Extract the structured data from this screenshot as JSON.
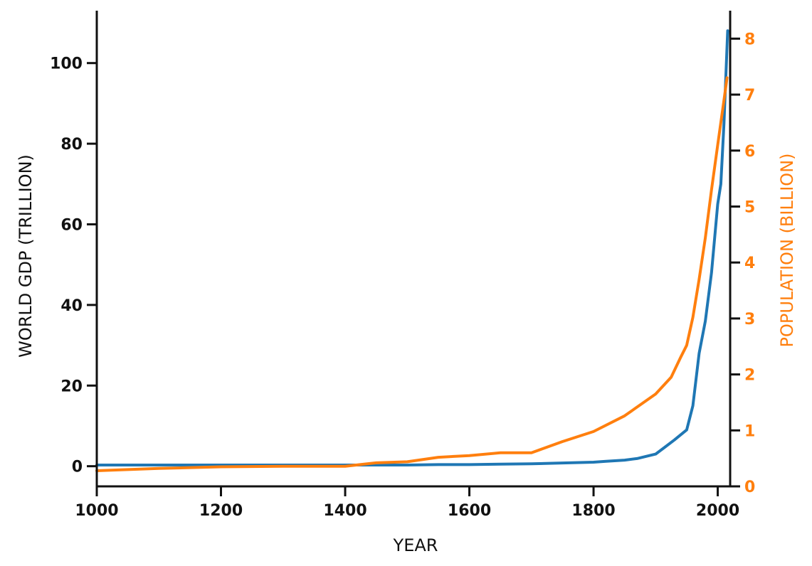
{
  "chart_data": {
    "type": "line",
    "xlabel": "YEAR",
    "xlim": [
      1000,
      2020
    ],
    "xticks": [
      1000,
      1200,
      1400,
      1600,
      1800,
      2000
    ],
    "grid": false,
    "left_axis": {
      "label": "WORLD GDP (TRILLION)",
      "ylim": [
        -5,
        113
      ],
      "ticks": [
        0,
        20,
        40,
        60,
        80,
        100
      ],
      "color": "#111111"
    },
    "right_axis": {
      "label": "POPULATION (BILLION)",
      "ylim": [
        0,
        8.5
      ],
      "ticks": [
        0,
        1,
        2,
        3,
        4,
        5,
        6,
        7,
        8
      ],
      "color": "#ff7f0e"
    },
    "series": [
      {
        "axis": "left",
        "color": "#1f77b4",
        "points": [
          [
            1000,
            0.3
          ],
          [
            1100,
            0.3
          ],
          [
            1200,
            0.3
          ],
          [
            1300,
            0.3
          ],
          [
            1400,
            0.3
          ],
          [
            1500,
            0.3
          ],
          [
            1550,
            0.4
          ],
          [
            1600,
            0.4
          ],
          [
            1650,
            0.5
          ],
          [
            1700,
            0.6
          ],
          [
            1750,
            0.8
          ],
          [
            1800,
            1.0
          ],
          [
            1820,
            1.2
          ],
          [
            1850,
            1.5
          ],
          [
            1870,
            1.9
          ],
          [
            1900,
            3.0
          ],
          [
            1913,
            4.5
          ],
          [
            1930,
            6.5
          ],
          [
            1950,
            9.0
          ],
          [
            1960,
            15.0
          ],
          [
            1970,
            28.0
          ],
          [
            1980,
            36.0
          ],
          [
            1990,
            48.0
          ],
          [
            2000,
            65.0
          ],
          [
            2005,
            70.0
          ],
          [
            2010,
            85.0
          ],
          [
            2016,
            108.0
          ]
        ]
      },
      {
        "axis": "right",
        "color": "#ff7f0e",
        "points": [
          [
            1000,
            0.28
          ],
          [
            1100,
            0.32
          ],
          [
            1200,
            0.35
          ],
          [
            1300,
            0.36
          ],
          [
            1400,
            0.36
          ],
          [
            1450,
            0.42
          ],
          [
            1500,
            0.44
          ],
          [
            1550,
            0.52
          ],
          [
            1600,
            0.55
          ],
          [
            1650,
            0.6
          ],
          [
            1700,
            0.6
          ],
          [
            1750,
            0.8
          ],
          [
            1800,
            0.98
          ],
          [
            1850,
            1.26
          ],
          [
            1900,
            1.65
          ],
          [
            1925,
            1.95
          ],
          [
            1940,
            2.3
          ],
          [
            1950,
            2.52
          ],
          [
            1960,
            3.02
          ],
          [
            1970,
            3.7
          ],
          [
            1980,
            4.44
          ],
          [
            1990,
            5.3
          ],
          [
            2000,
            6.1
          ],
          [
            2010,
            6.9
          ],
          [
            2015,
            7.3
          ]
        ]
      }
    ]
  }
}
